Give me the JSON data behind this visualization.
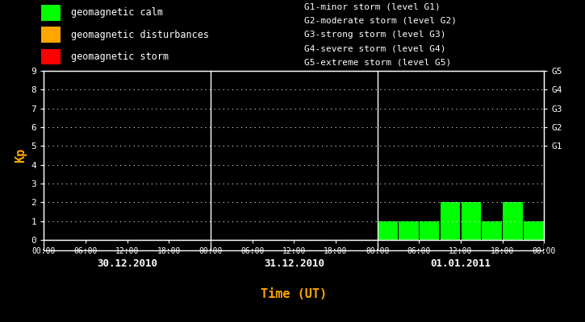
{
  "background_color": "#000000",
  "plot_bg_color": "#000000",
  "text_color": "#ffffff",
  "title_color": "#ffa500",
  "bar_color_calm": "#00ff00",
  "bar_color_disturb": "#ffa500",
  "bar_color_storm": "#ff0000",
  "ylim": [
    0,
    9
  ],
  "yticks": [
    0,
    1,
    2,
    3,
    4,
    5,
    6,
    7,
    8,
    9
  ],
  "ylabel": "Kp",
  "xlabel": "Time (UT)",
  "days": [
    "30.12.2010",
    "31.12.2010",
    "01.01.2011"
  ],
  "xtick_labels": [
    "00:00",
    "06:00",
    "12:00",
    "18:00",
    "00:00",
    "06:00",
    "12:00",
    "18:00",
    "00:00",
    "06:00",
    "12:00",
    "18:00",
    "00:00"
  ],
  "right_labels": [
    "G5",
    "G4",
    "G3",
    "G2",
    "G1"
  ],
  "right_label_yvals": [
    9,
    8,
    7,
    6,
    5
  ],
  "legend_items": [
    {
      "color": "#00ff00",
      "label": "geomagnetic calm"
    },
    {
      "color": "#ffa500",
      "label": "geomagnetic disturbances"
    },
    {
      "color": "#ff0000",
      "label": "geomagnetic storm"
    }
  ],
  "legend_g_items": [
    "G1-minor storm (level G1)",
    "G2-moderate storm (level G2)",
    "G3-strong storm (level G3)",
    "G4-severe storm (level G4)",
    "G5-extreme storm (level G5)"
  ],
  "kp_data": {
    "day0": [
      0,
      0,
      0,
      0,
      0,
      0,
      0,
      0
    ],
    "day1": [
      0,
      0,
      0,
      0,
      0,
      0,
      0,
      0
    ],
    "day2": [
      1,
      1,
      1,
      2,
      2,
      1,
      2,
      1
    ]
  },
  "vline_color": "#ffffff",
  "axis_line_color": "#ffffff",
  "tick_color": "#ffffff",
  "dot_color": "#ffffff",
  "font_family": "monospace"
}
